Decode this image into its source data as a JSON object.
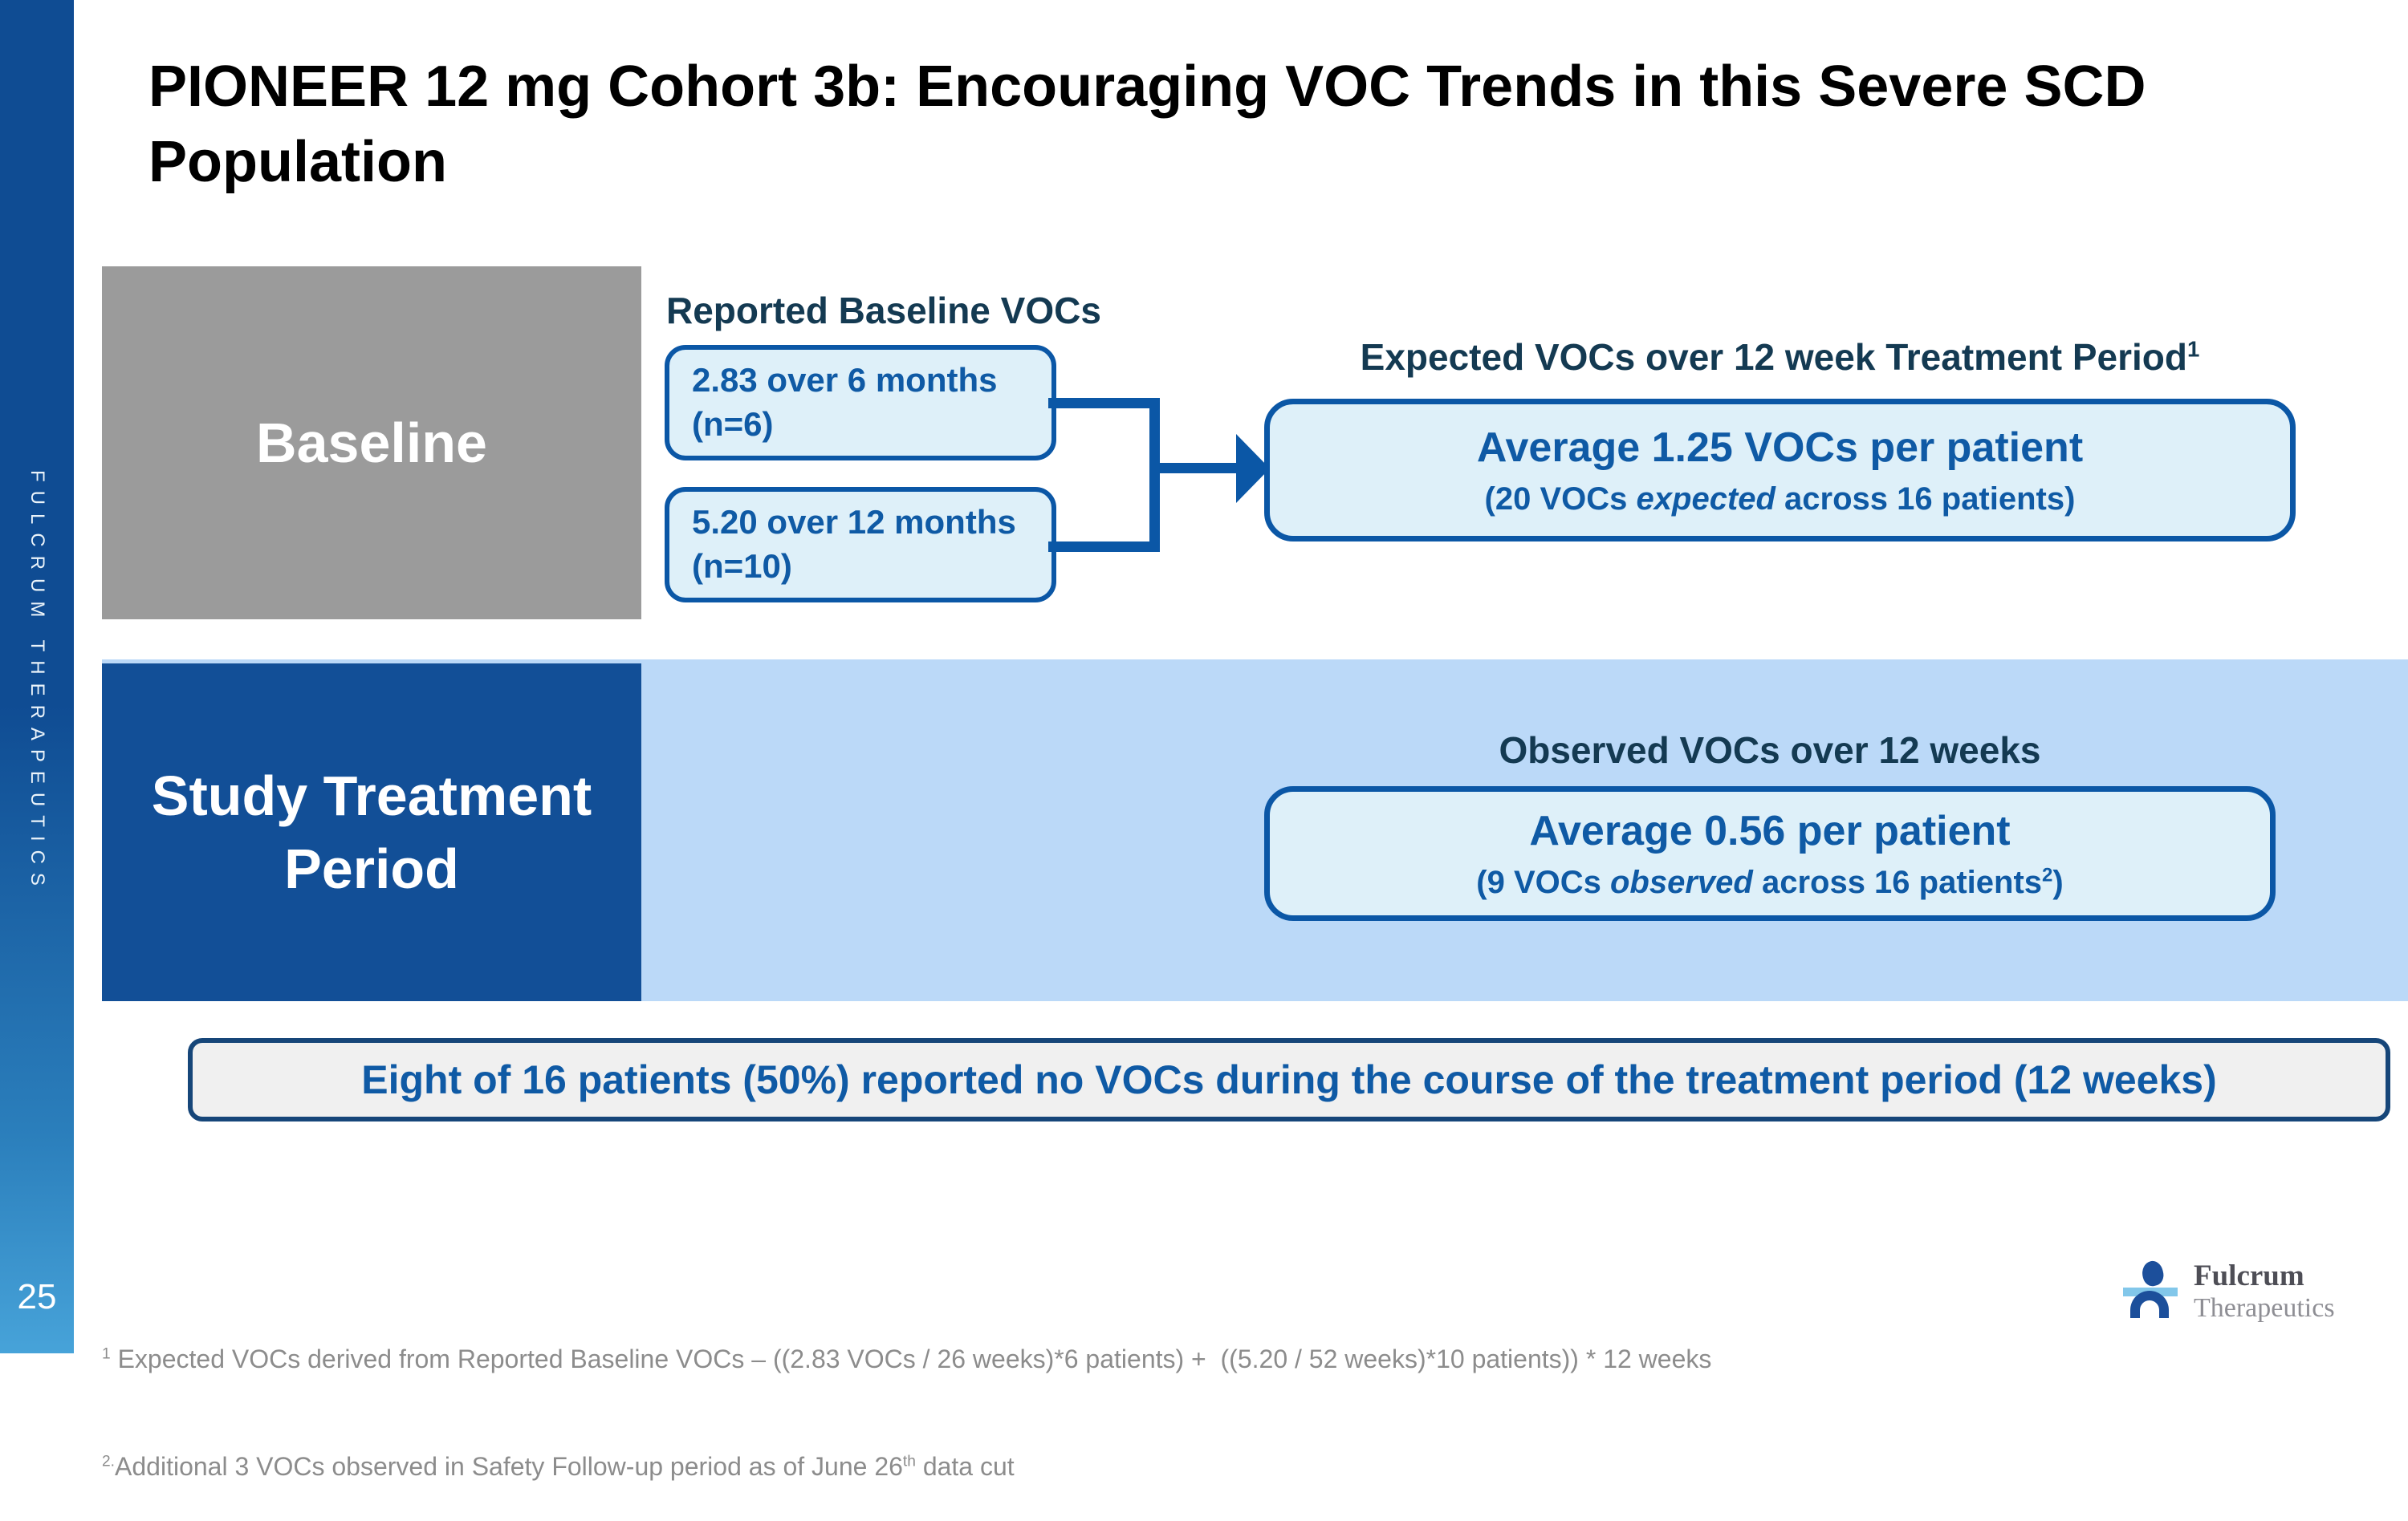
{
  "slide": {
    "title_line1": "PIONEER 12 mg Cohort 3b: Encouraging VOC Trends in this Severe SCD",
    "title_line2": "Population",
    "page_number": "25",
    "sidebar_brand": "FULCRUM THERAPEUTICS"
  },
  "baseline_section": {
    "label": "Baseline",
    "reported_header": "Reported Baseline VOCs",
    "voc_boxes": [
      {
        "line1": "2.83 over 6 months",
        "line2": "(n=6)"
      },
      {
        "line1": "5.20 over 12 months",
        "line2": "(n=10)"
      }
    ],
    "expected_header_text": "Expected VOCs over 12 week Treatment Period",
    "expected_header_sup": "1",
    "expected_box": {
      "headline": "Average 1.25 VOCs per patient",
      "detail_prefix": "(20 VOCs ",
      "detail_italic": "expected",
      "detail_suffix": " across 16 patients)"
    }
  },
  "treatment_section": {
    "label_line1": "Study Treatment",
    "label_line2": "Period",
    "observed_header": "Observed VOCs over 12 weeks",
    "observed_box": {
      "headline": "Average 0.56 per patient",
      "detail_prefix": "(9 VOCs ",
      "detail_italic": "observed",
      "detail_suffix": " across 16 patients",
      "detail_sup": "2",
      "detail_close": ")"
    }
  },
  "callout": {
    "text": "Eight of 16 patients (50%) reported no VOCs during the course of the treatment period (12 weeks)"
  },
  "footnotes": {
    "f1_sup": "1",
    "f1_text": " Expected VOCs derived from Reported Baseline VOCs – ((2.83 VOCs / 26 weeks)*6 patients) +  ((5.20 / 52 weeks)*10 patients)) * 12 weeks",
    "f2_sup": "2.",
    "f2_text": "Additional 3 VOCs observed in Safety Follow-up period as of June 26",
    "f2_sup2": "th",
    "f2_text2": " data cut"
  },
  "logo": {
    "name": "Fulcrum",
    "suffix": "Therapeutics"
  },
  "colors": {
    "accent_blue": "#0B57A6",
    "text_blue": "#0F5AA5",
    "header_navy": "#143A52",
    "band_blue": "#BBD9F8",
    "dark_box_blue": "#124F97",
    "gray_box": "#9B9B9B",
    "box_fill": "#DEF0F9",
    "callout_bg": "#F0F0F0",
    "callout_border": "#164679",
    "footnote_gray": "#8C8C8C",
    "sidebar_top": "#0F4C93",
    "sidebar_bottom": "#47A3D9"
  }
}
